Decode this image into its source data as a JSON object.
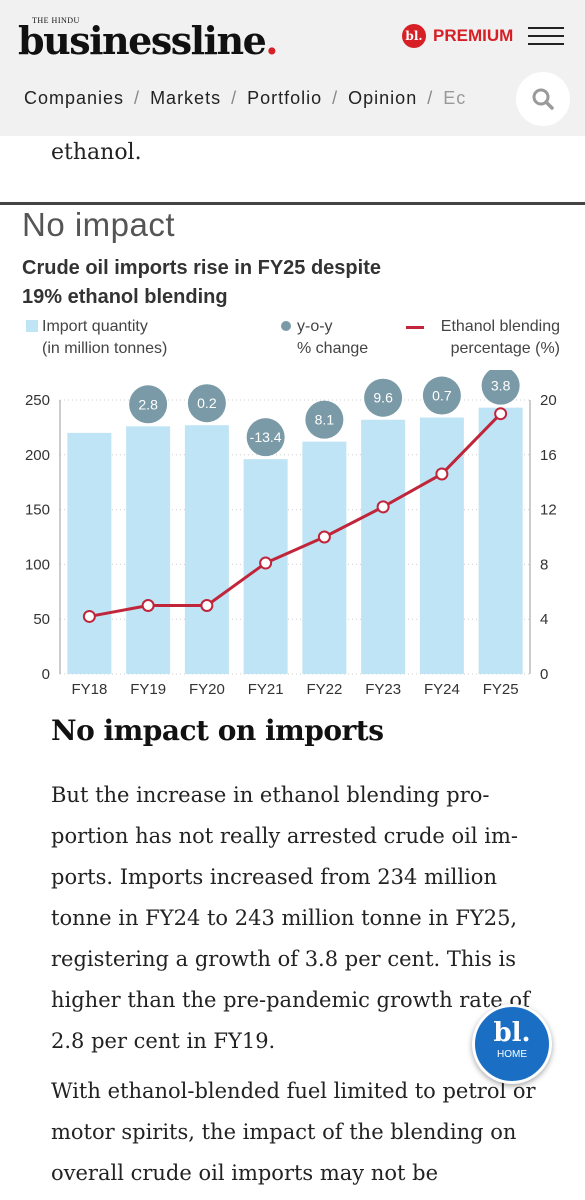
{
  "header": {
    "logo_top": "THE HINDU",
    "logo_main": "businessline",
    "logo_dot": ".",
    "premium_badge": "bl.",
    "premium_label": "PREMIUM",
    "nav": [
      "Companies",
      "Markets",
      "Portfolio",
      "Opinion",
      "Ec"
    ],
    "nav_sep": "/"
  },
  "article": {
    "prev_text": "ethanol.",
    "heading": "No impact on imports",
    "paragraph1": "But the increase in ethanol blending pro-portion has not really arrested crude oil im-ports. Imports increased from 234 million tonne in FY24 to 243 million tonne in FY25, registering a growth of 3.8 per cent. This is higher than the pre-pandemic growth rate of 2.8 per cent in FY19.",
    "paragraph2": "With ethanol-blended fuel limited to petrol or motor spirits, the impact of the blending on overall crude oil imports may not be"
  },
  "home_button": {
    "logo": "bl.",
    "label": "HOME"
  },
  "chart_overline": "No impact",
  "legend": {
    "quantity": [
      "Import quantity",
      "(in million tonnes)"
    ],
    "yoy": [
      "y-o-y",
      "% change"
    ],
    "ethanol": [
      "Ethanol blending",
      "percentage (%)"
    ]
  },
  "colors": {
    "bar": "#bfe4f5",
    "bubble": "#7a9aa7",
    "line": "#c0253a",
    "brand_red": "#d71f26",
    "home_blue": "#1a6fc4"
  },
  "chart_data": {
    "type": "bar",
    "title": "Crude oil imports rise in FY25 despite 19% ethanol blending",
    "categories": [
      "FY18",
      "FY19",
      "FY20",
      "FY21",
      "FY22",
      "FY23",
      "FY24",
      "FY25"
    ],
    "series": [
      {
        "name": "Import quantity (in million tonnes)",
        "type": "bar",
        "axis": "left",
        "values": [
          220,
          226,
          227,
          196,
          212,
          232,
          234,
          243
        ]
      },
      {
        "name": "y-o-y % change",
        "type": "label",
        "values": [
          null,
          2.8,
          0.2,
          -13.4,
          8.1,
          9.6,
          0.7,
          3.8
        ]
      },
      {
        "name": "Ethanol blending percentage (%)",
        "type": "line",
        "axis": "right",
        "values": [
          4.2,
          5.0,
          5.0,
          8.1,
          10.0,
          12.2,
          14.6,
          19.0
        ]
      }
    ],
    "yleft": {
      "lim": [
        0,
        250
      ],
      "ticks": [
        0,
        50,
        100,
        150,
        200,
        250
      ]
    },
    "yright": {
      "lim": [
        0,
        20
      ],
      "ticks": [
        0,
        4,
        8,
        12,
        16,
        20
      ]
    },
    "grid": "horizontal dotted"
  }
}
